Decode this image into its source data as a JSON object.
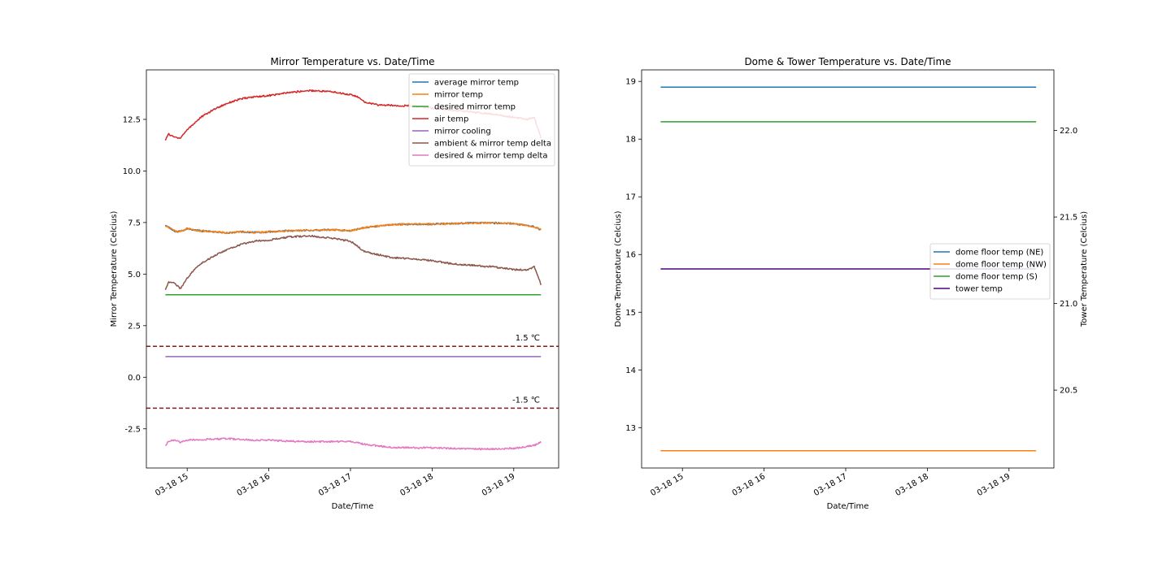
{
  "chart_data": [
    {
      "type": "line",
      "title": "Mirror Temperature vs. Date/Time",
      "xlabel": "Date/Time",
      "ylabel": "Mirror Temperature (Celcius)",
      "x_ticks": [
        "03-18 15",
        "03-18 16",
        "03-18 17",
        "03-18 18",
        "03-18 19"
      ],
      "y_ticks": [
        "-2.5",
        "0.0",
        "2.5",
        "5.0",
        "7.5",
        "10.0",
        "12.5"
      ],
      "ylim": [
        -4.4,
        14.9
      ],
      "xlim": [
        "2020-03-18T14:30",
        "2020-03-18T19:33"
      ],
      "legend_position": "upper right",
      "grid": false,
      "series": [
        {
          "name": "average mirror temp",
          "color": "#1f77b4",
          "x": [
            "14:44",
            "14:48",
            "14:52",
            "14:56",
            "15:00",
            "15:10",
            "15:20",
            "15:30",
            "15:40",
            "15:50",
            "16:00",
            "16:15",
            "16:30",
            "16:45",
            "17:00",
            "17:10",
            "17:30",
            "17:45",
            "18:00",
            "18:15",
            "18:30",
            "18:45",
            "19:00",
            "19:15",
            "19:20"
          ],
          "y": [
            7.35,
            7.2,
            7.05,
            7.1,
            7.2,
            7.1,
            7.05,
            7.0,
            7.05,
            7.02,
            7.05,
            7.1,
            7.12,
            7.15,
            7.1,
            7.25,
            7.4,
            7.42,
            7.42,
            7.45,
            7.48,
            7.48,
            7.45,
            7.3,
            7.15
          ]
        },
        {
          "name": "mirror temp",
          "color": "#ff7f0e",
          "x": [
            "14:44",
            "14:48",
            "14:52",
            "14:56",
            "15:00",
            "15:10",
            "15:20",
            "15:30",
            "15:40",
            "15:50",
            "16:00",
            "16:15",
            "16:30",
            "16:45",
            "17:00",
            "17:10",
            "17:30",
            "17:45",
            "18:00",
            "18:15",
            "18:30",
            "18:45",
            "19:00",
            "19:15",
            "19:20"
          ],
          "y": [
            7.35,
            7.2,
            7.05,
            7.1,
            7.2,
            7.1,
            7.05,
            7.0,
            7.05,
            7.02,
            7.05,
            7.1,
            7.12,
            7.15,
            7.1,
            7.25,
            7.4,
            7.42,
            7.42,
            7.45,
            7.48,
            7.48,
            7.45,
            7.3,
            7.15
          ]
        },
        {
          "name": "desired mirror temp",
          "color": "#2ca02c",
          "x": [
            "14:44",
            "19:20"
          ],
          "y": [
            4.0,
            4.0
          ]
        },
        {
          "name": "air temp",
          "color": "#d62728",
          "x": [
            "14:44",
            "14:46",
            "14:50",
            "14:55",
            "15:00",
            "15:05",
            "15:10",
            "15:20",
            "15:30",
            "15:40",
            "15:50",
            "16:00",
            "16:15",
            "16:30",
            "16:45",
            "17:00",
            "17:05",
            "17:10",
            "17:20",
            "17:30",
            "17:45",
            "18:00",
            "18:15",
            "18:30",
            "18:45",
            "19:00",
            "19:10",
            "19:15",
            "19:20"
          ],
          "y": [
            11.5,
            11.8,
            11.65,
            11.6,
            12.0,
            12.3,
            12.6,
            13.0,
            13.3,
            13.5,
            13.6,
            13.65,
            13.8,
            13.9,
            13.85,
            13.7,
            13.6,
            13.35,
            13.2,
            13.18,
            13.15,
            13.05,
            12.95,
            12.85,
            12.75,
            12.6,
            12.5,
            12.6,
            11.6
          ]
        },
        {
          "name": "mirror cooling",
          "color": "#9467bd",
          "x": [
            "14:44",
            "19:20"
          ],
          "y": [
            1.0,
            1.0
          ]
        },
        {
          "name": "ambient & mirror temp delta",
          "color": "#8c564b",
          "x": [
            "14:44",
            "14:46",
            "14:50",
            "14:55",
            "15:00",
            "15:05",
            "15:10",
            "15:20",
            "15:30",
            "15:40",
            "15:50",
            "16:00",
            "16:15",
            "16:30",
            "16:45",
            "17:00",
            "17:05",
            "17:10",
            "17:20",
            "17:30",
            "17:45",
            "18:00",
            "18:15",
            "18:30",
            "18:45",
            "19:00",
            "19:10",
            "19:15",
            "19:20"
          ],
          "y": [
            4.2,
            4.6,
            4.6,
            4.3,
            4.8,
            5.2,
            5.5,
            5.9,
            6.2,
            6.45,
            6.6,
            6.65,
            6.8,
            6.85,
            6.75,
            6.6,
            6.35,
            6.1,
            5.95,
            5.8,
            5.75,
            5.65,
            5.5,
            5.42,
            5.35,
            5.22,
            5.2,
            5.35,
            4.5
          ]
        },
        {
          "name": "desired & mirror temp delta",
          "color": "#e377c2",
          "x": [
            "14:44",
            "14:46",
            "14:50",
            "14:55",
            "15:00",
            "15:10",
            "15:20",
            "15:30",
            "15:40",
            "15:50",
            "16:00",
            "16:15",
            "16:30",
            "16:45",
            "17:00",
            "17:10",
            "17:30",
            "17:45",
            "18:00",
            "18:15",
            "18:30",
            "18:45",
            "19:00",
            "19:15",
            "19:20"
          ],
          "y": [
            -3.35,
            -3.1,
            -3.05,
            -3.15,
            -3.05,
            -3.02,
            -3.0,
            -2.98,
            -3.02,
            -3.05,
            -3.05,
            -3.1,
            -3.12,
            -3.12,
            -3.1,
            -3.25,
            -3.4,
            -3.42,
            -3.42,
            -3.45,
            -3.48,
            -3.48,
            -3.45,
            -3.3,
            -3.15
          ]
        }
      ],
      "reference_lines": [
        {
          "y": 1.5,
          "label": "1.5 ℃",
          "color": "#8b1a1a",
          "style": "dashed"
        },
        {
          "y": -1.5,
          "label": "-1.5 ℃",
          "color": "#8b1a1a",
          "style": "dashed"
        }
      ]
    },
    {
      "type": "line",
      "title": "Dome & Tower Temperature vs. Date/Time",
      "xlabel": "Date/Time",
      "ylabel": "Dome Temperature (Celcius)",
      "ylabel_right": "Tower Temperature (Celcius)",
      "x_ticks": [
        "03-18 15",
        "03-18 16",
        "03-18 17",
        "03-18 18",
        "03-18 19"
      ],
      "y_ticks": [
        "13",
        "14",
        "15",
        "16",
        "17",
        "18",
        "19"
      ],
      "y_right_ticks": [
        "20.5",
        "21.0",
        "21.5",
        "22.0"
      ],
      "ylim": [
        12.3,
        19.2
      ],
      "ylim_right": [
        20.05,
        22.35
      ],
      "xlim": [
        "2020-03-18T14:30",
        "2020-03-18T19:33"
      ],
      "legend_position": "center right",
      "grid": false,
      "series": [
        {
          "name": "dome floor temp (NE)",
          "color": "#1f77b4",
          "axis": "left",
          "x": [
            "14:44",
            "19:20"
          ],
          "y": [
            18.9,
            18.9
          ]
        },
        {
          "name": "dome floor temp (NW)",
          "color": "#ff7f0e",
          "axis": "left",
          "x": [
            "14:44",
            "19:20"
          ],
          "y": [
            12.6,
            12.6
          ]
        },
        {
          "name": "dome floor temp (S)",
          "color": "#2ca02c",
          "axis": "left",
          "x": [
            "14:44",
            "19:20"
          ],
          "y": [
            18.3,
            18.3
          ]
        },
        {
          "name": "tower temp",
          "color": "#4b0082",
          "axis": "right",
          "x": [
            "14:44",
            "19:20"
          ],
          "y": [
            21.2,
            21.2
          ]
        }
      ]
    }
  ]
}
